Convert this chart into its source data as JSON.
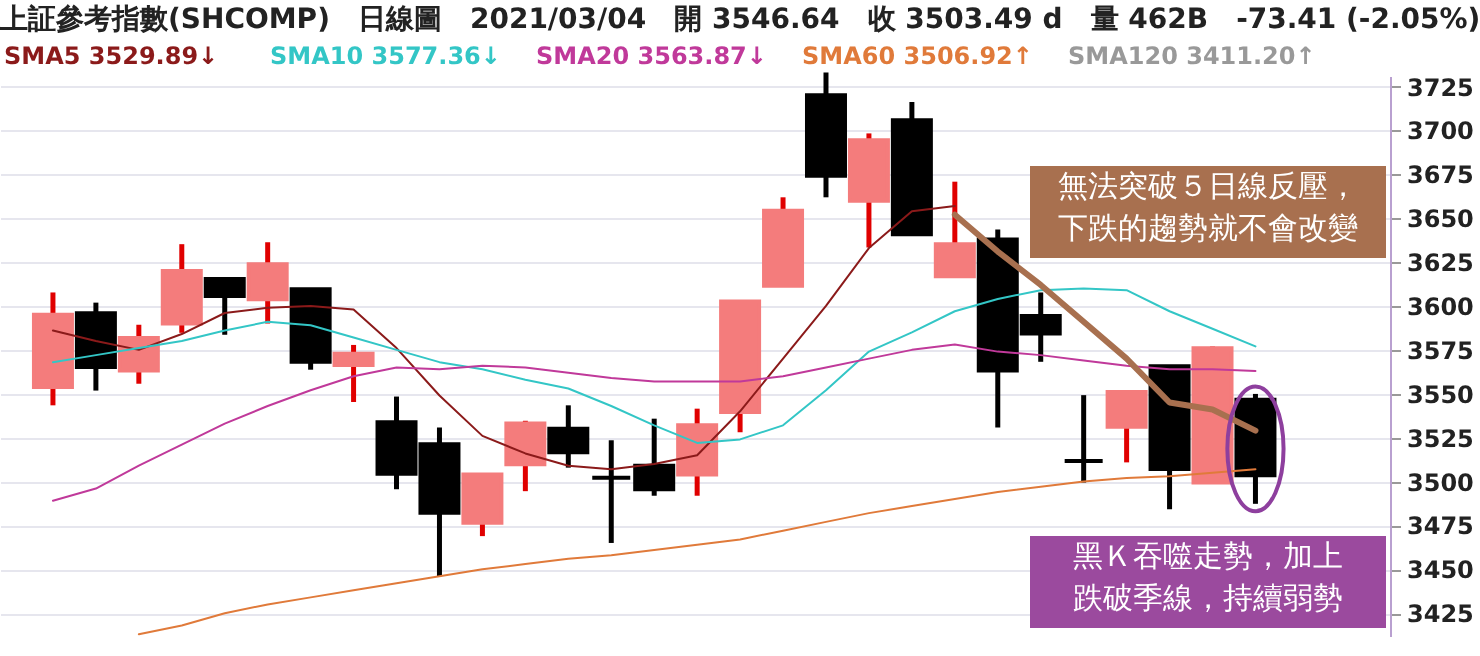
{
  "chart_data": {
    "type": "candlestick",
    "title": "上証參考指數(SHCOMP)　日線圖　2021/03/04　開 3546.64　收 3503.49 d　量 462B　-73.41 (-2.05%)",
    "categories": [
      null,
      null,
      null,
      null,
      null,
      null,
      null,
      null,
      null,
      null,
      null,
      null,
      null,
      null,
      null,
      null,
      null,
      null,
      null,
      null,
      null,
      null,
      null,
      null,
      null,
      null,
      null,
      null,
      null
    ],
    "ohlc": [
      [
        3553.8,
        3607.7,
        3543.4,
        3595.0
      ],
      [
        3595.8,
        3601.9,
        3551.8,
        3565.2
      ],
      [
        3563.3,
        3589.3,
        3555.7,
        3581.7
      ],
      [
        3590.0,
        3635.2,
        3584.7,
        3619.9
      ],
      [
        3615.3,
        3615.3,
        3583.6,
        3605.7
      ],
      [
        3603.8,
        3636.3,
        3590.0,
        3623.7
      ],
      [
        3609.5,
        3609.5,
        3563.7,
        3568.2
      ],
      [
        3566.4,
        3577.8,
        3545.3,
        3572.8
      ],
      [
        3533.8,
        3548.4,
        3495.6,
        3504.4
      ],
      [
        3521.2,
        3530.8,
        3446.0,
        3482.2
      ],
      [
        3476.5,
        3504.0,
        3468.9,
        3504.0
      ],
      [
        3509.8,
        3534.6,
        3494.5,
        3533.1
      ],
      [
        3530.0,
        3543.4,
        3507.9,
        3516.7
      ],
      [
        3502.2,
        3523.5,
        3465.0,
        3502.2
      ],
      [
        3509.0,
        3535.8,
        3491.9,
        3495.6
      ],
      [
        3504.0,
        3541.5,
        3491.9,
        3532.0
      ],
      [
        3539.6,
        3602.6,
        3528.1,
        3602.6
      ],
      [
        3611.5,
        3661.9,
        3611.5,
        3654.2
      ],
      [
        3720.1,
        3733.0,
        3661.9,
        3674.2
      ],
      [
        3660.0,
        3698.3,
        3633.3,
        3694.4
      ],
      [
        3705.8,
        3716.2,
        3640.9,
        3640.9
      ],
      [
        3616.9,
        3670.8,
        3616.9,
        3635.2
      ],
      [
        3637.8,
        3643.6,
        3530.8,
        3563.3
      ],
      [
        3594.3,
        3607.7,
        3568.2,
        3584.3
      ],
      [
        3511.7,
        3549.2,
        3499.4,
        3511.7
      ],
      [
        3531.2,
        3551.0,
        3510.9,
        3551.0
      ],
      [
        3565.6,
        3565.6,
        3484.2,
        3507.1
      ],
      [
        3499.4,
        3576.9,
        3499.4,
        3575.9
      ],
      [
        3546.6,
        3549.9,
        3487.3,
        3503.5
      ]
    ],
    "colors": [
      "#f47c7c",
      "#000000",
      "#f47c7c",
      "#f47c7c",
      "#000000",
      "#f47c7c",
      "#000000",
      "#f47c7c",
      "#000000",
      "#000000",
      "#f47c7c",
      "#f47c7c",
      "#000000",
      "#000000",
      "#000000",
      "#f47c7c",
      "#f47c7c",
      "#f47c7c",
      "#000000",
      "#f47c7c",
      "#000000",
      "#f47c7c",
      "#000000",
      "#000000",
      "#000000",
      "#f47c7c",
      "#000000",
      "#f47c7c",
      "#000000"
    ],
    "series": [
      {
        "name": "SMA5 3529.89↓",
        "type": "line",
        "color": "#8b1a1a",
        "values": [
          3586,
          3580,
          3575,
          3584,
          3596,
          3599,
          3600,
          3598,
          3576,
          3549,
          3526,
          3516,
          3509,
          3507,
          3510,
          3515,
          3540,
          3570,
          3600,
          3633,
          3654,
          3657,
          null,
          null,
          null,
          null,
          null,
          null,
          null
        ]
      },
      {
        "name": "SMA10 3577.36↓",
        "type": "line",
        "color": "#33c6c6",
        "values": [
          3568,
          3572,
          3576,
          3580,
          3586,
          3591,
          3589,
          3582,
          3575,
          3568,
          3564,
          3558,
          3553,
          3543,
          3532,
          3522,
          3524,
          3532,
          3552,
          3574,
          3585,
          3597,
          3604,
          3609,
          3610,
          3609,
          3597,
          3587,
          3577
        ]
      },
      {
        "name": "SMA20 3563.87↓",
        "type": "line",
        "color": "#c0399a",
        "values": [
          3489,
          3496,
          3509,
          3521,
          3533,
          3543,
          3552,
          3560,
          3565,
          3564,
          3566,
          3565,
          3562,
          3559,
          3557,
          3557,
          3557,
          3560,
          3565,
          3570,
          3575,
          3578,
          3574,
          3572,
          3569,
          3566,
          3564,
          3564,
          3563
        ]
      },
      {
        "name": "SMA60 3506.92↑",
        "type": "line",
        "color": "#e07a3a",
        "values": [
          null,
          null,
          3413,
          3418,
          3425,
          3430,
          3434,
          3438,
          3442,
          3446,
          3450,
          3453,
          3456,
          3458,
          3461,
          3464,
          3467,
          3472,
          3477,
          3482,
          3486,
          3490,
          3494,
          3497,
          3500,
          3502,
          3503,
          3505,
          3507
        ]
      },
      {
        "type": "line",
        "color": "#a8704f",
        "values": [
          null,
          null,
          null,
          null,
          null,
          null,
          null,
          null,
          null,
          null,
          null,
          null,
          null,
          null,
          null,
          null,
          null,
          null,
          null,
          null,
          null,
          3652,
          3631,
          3612,
          3591,
          3570,
          3545,
          3541,
          3529
        ]
      }
    ],
    "annotations": [
      "SMA120 3411.20↑",
      "無法突破５日線反壓，下跌的趨勢就不會改變",
      "黑Ｋ吞噬走勢，加上跌破季線，持續弱勢"
    ],
    "ylim": [
      3412,
      3731
    ],
    "yticks": [
      3425,
      3450,
      3475,
      3500,
      3525,
      3550,
      3575,
      3600,
      3625,
      3650,
      3675,
      3700,
      3725
    ],
    "grid": "y",
    "marker": "none",
    "legend": "top left"
  }
}
